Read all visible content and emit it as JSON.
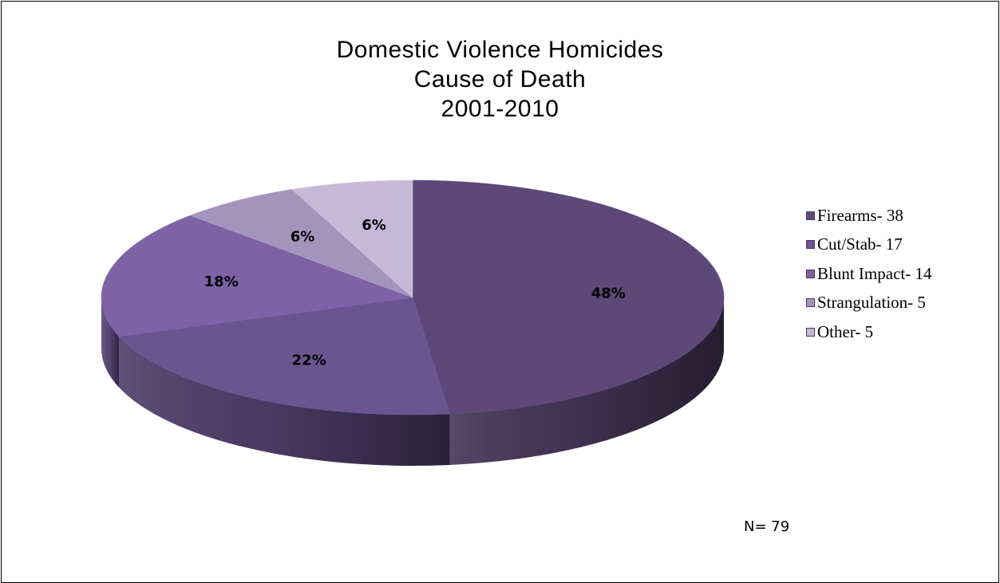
{
  "chart_data": {
    "type": "pie",
    "title": [
      "Domestic Violence Homicides",
      "Cause of Death",
      "2001-2010"
    ],
    "slices": [
      {
        "legend": "Firearms- 38",
        "value": 38,
        "percent_label": "48%",
        "color": "#5d4878"
      },
      {
        "legend": "Cut/Stab- 17",
        "value": 17,
        "percent_label": "22%",
        "color": "#6a5590"
      },
      {
        "legend": "Blunt Impact- 14",
        "value": 14,
        "percent_label": "18%",
        "color": "#7d62a5"
      },
      {
        "legend": "Strangulation- 5",
        "value": 5,
        "percent_label": "6%",
        "color": "#a394bb"
      },
      {
        "legend": "Other- 5",
        "value": 5,
        "percent_label": "6%",
        "color": "#c4b9d6"
      }
    ],
    "total_note": "N= 79",
    "legend_position": "right",
    "style": "3d"
  }
}
